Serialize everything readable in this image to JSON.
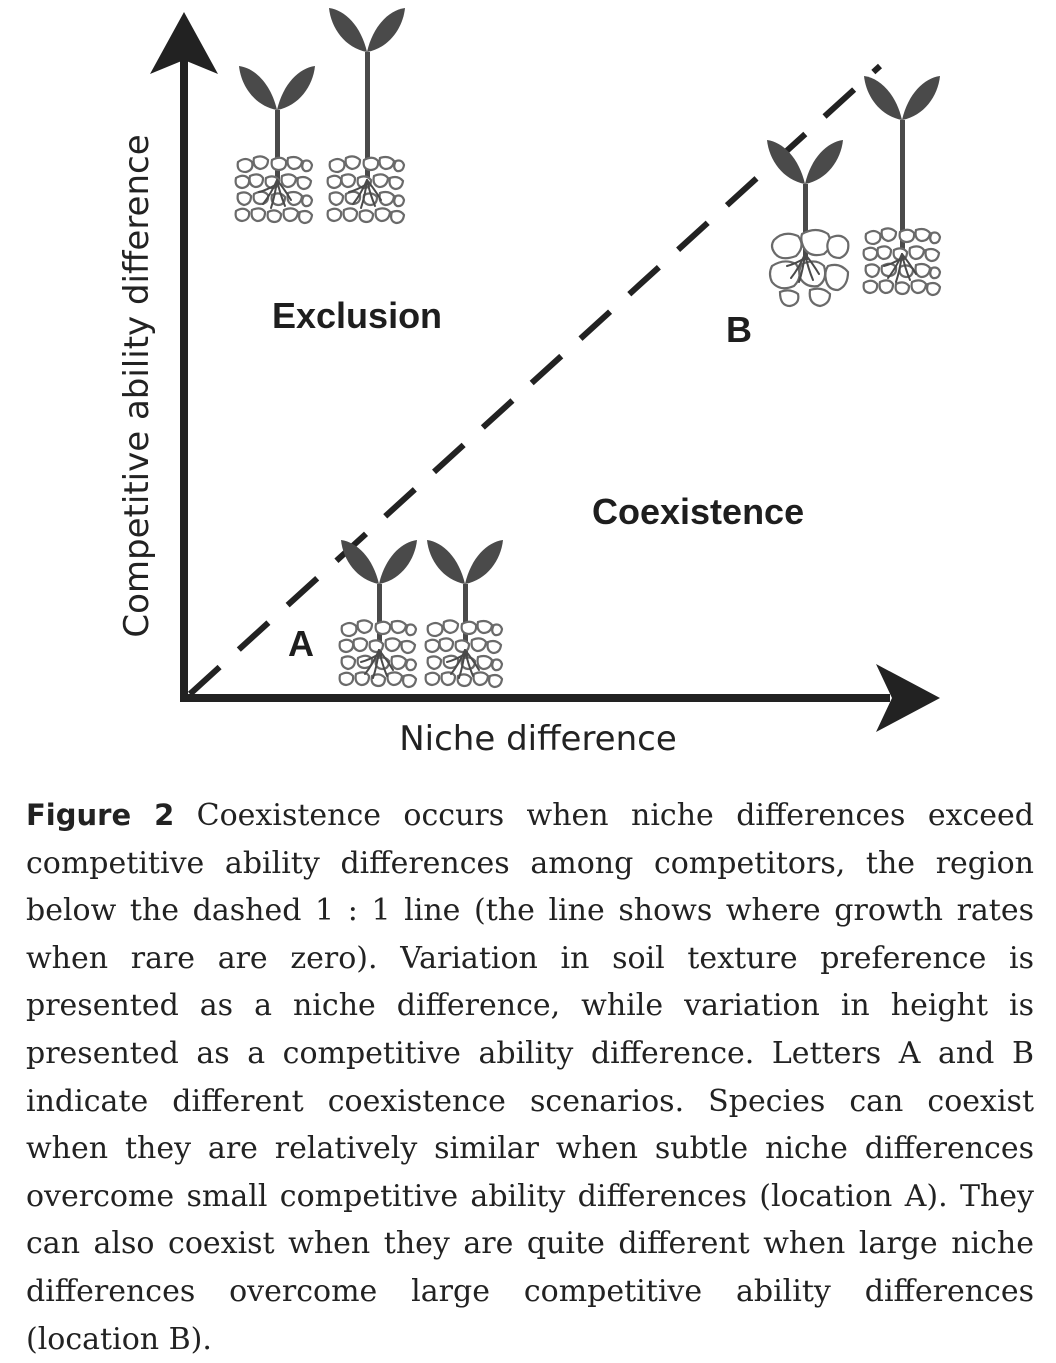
{
  "figure": {
    "y_axis_label": "Competitive ability difference",
    "x_axis_label": "Niche difference",
    "regions": {
      "exclusion": "Exclusion",
      "coexistence": "Coexistence"
    },
    "points": {
      "a": "A",
      "b": "B"
    },
    "icons": [
      "plant-icon",
      "soil-icon",
      "arrow-icon"
    ]
  },
  "caption": {
    "label": "Figure 2",
    "text": " Coexistence occurs when niche differences exceed competitive ability differences among competitors, the region below the dashed 1 : 1 line (the line shows where growth rates when rare are zero). Variation in soil texture preference is presented as a niche difference, while variation in height is presented as a competitive ability difference. Letters A and B indicate different coexistence scenarios. Species can coexist when they are relatively similar when subtle niche differences overcome small competitive ability differences (location A). They can also coexist when they are quite different when large niche differences overcome large competitive ability differences (location B)."
  },
  "colors": {
    "axis": "#222222",
    "plant": "#4a4a4a",
    "soil_outline": "#6a6a6a"
  }
}
